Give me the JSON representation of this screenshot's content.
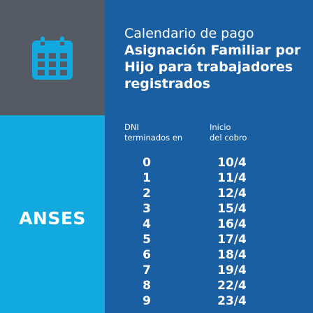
{
  "icon": "calendar-icon",
  "colors": {
    "dark_panel": "#545b65",
    "light_panel": "#11a9e0",
    "main_panel": "#1b5fa3",
    "icon": "#11a9e0"
  },
  "brand": "ANSES",
  "title": {
    "line1": "Calendario de pago",
    "line2": "Asignación Familiar por",
    "line3": "Hijo para trabajadores",
    "line4": "registrados"
  },
  "columns": {
    "dni_line1": "DNI",
    "dni_line2": "terminados en",
    "inicio_line1": "Inicio",
    "inicio_line2": "del cobro"
  },
  "rows": [
    {
      "digit": "0",
      "date": "10/4"
    },
    {
      "digit": "1",
      "date": "11/4"
    },
    {
      "digit": "2",
      "date": "12/4"
    },
    {
      "digit": "3",
      "date": "15/4"
    },
    {
      "digit": "4",
      "date": "16/4"
    },
    {
      "digit": "5",
      "date": "17/4"
    },
    {
      "digit": "6",
      "date": "18/4"
    },
    {
      "digit": "7",
      "date": "19/4"
    },
    {
      "digit": "8",
      "date": "22/4"
    },
    {
      "digit": "9",
      "date": "23/4"
    }
  ]
}
